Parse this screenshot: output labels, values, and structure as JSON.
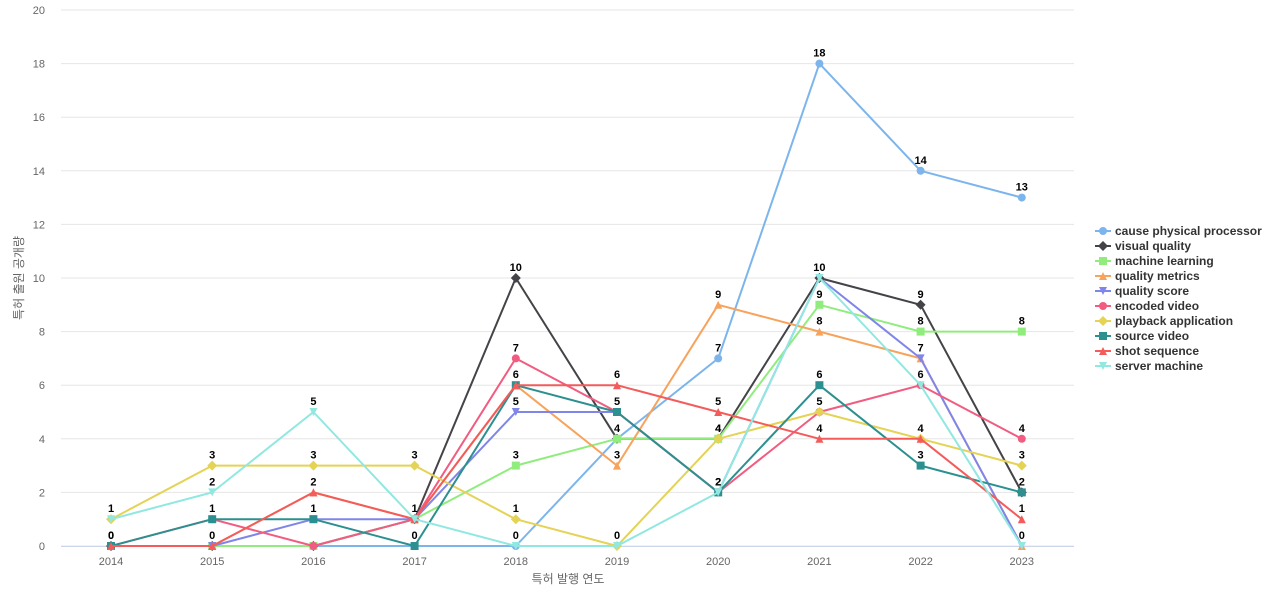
{
  "chart_data": {
    "type": "line",
    "title": "",
    "xlabel": "특허 발행 연도",
    "ylabel": "특허 출원 공개량",
    "categories": [
      "2014",
      "2015",
      "2016",
      "2017",
      "2018",
      "2019",
      "2020",
      "2021",
      "2022",
      "2023"
    ],
    "ylim": [
      0,
      20
    ],
    "yticks": [
      0,
      2,
      4,
      6,
      8,
      10,
      12,
      14,
      16,
      18,
      20
    ],
    "grid": true,
    "legend_position": "right",
    "series": [
      {
        "name": "cause physical processor",
        "color": "#7cb5ec",
        "marker": "circle",
        "values": [
          0,
          0,
          0,
          0,
          0,
          4,
          7,
          18,
          14,
          13
        ],
        "labels": [
          true,
          false,
          false,
          false,
          true,
          false,
          true,
          true,
          true,
          true
        ]
      },
      {
        "name": "visual quality",
        "color": "#434348",
        "marker": "diamond",
        "values": [
          0,
          0,
          0,
          1,
          10,
          4,
          4,
          10,
          9,
          2
        ],
        "labels": [
          false,
          false,
          false,
          false,
          true,
          false,
          false,
          true,
          true,
          false
        ]
      },
      {
        "name": "machine learning",
        "color": "#90ed7d",
        "marker": "square",
        "values": [
          0,
          0,
          0,
          1,
          3,
          4,
          4,
          9,
          8,
          8
        ],
        "labels": [
          false,
          false,
          false,
          false,
          true,
          true,
          true,
          true,
          true,
          true
        ]
      },
      {
        "name": "quality metrics",
        "color": "#f7a35c",
        "marker": "triangle",
        "values": [
          0,
          0,
          2,
          1,
          6,
          3,
          9,
          8,
          7,
          0
        ],
        "labels": [
          false,
          false,
          true,
          false,
          false,
          true,
          true,
          true,
          true,
          false
        ]
      },
      {
        "name": "quality score",
        "color": "#8085e9",
        "marker": "triangle-down",
        "values": [
          0,
          0,
          1,
          1,
          5,
          5,
          2,
          10,
          7,
          0
        ],
        "labels": [
          false,
          false,
          false,
          false,
          true,
          false,
          false,
          false,
          false,
          false
        ]
      },
      {
        "name": "encoded video",
        "color": "#f15c80",
        "marker": "circle",
        "values": [
          0,
          1,
          0,
          1,
          7,
          5,
          2,
          5,
          6,
          4
        ],
        "labels": [
          false,
          false,
          false,
          false,
          true,
          false,
          false,
          true,
          true,
          true
        ]
      },
      {
        "name": "playback application",
        "color": "#e4d354",
        "marker": "diamond",
        "values": [
          1,
          3,
          3,
          3,
          1,
          0,
          4,
          5,
          4,
          3
        ],
        "labels": [
          true,
          true,
          true,
          true,
          true,
          true,
          false,
          false,
          false,
          true
        ]
      },
      {
        "name": "source video",
        "color": "#2b908f",
        "marker": "square",
        "values": [
          0,
          1,
          1,
          0,
          6,
          5,
          2,
          6,
          3,
          2
        ],
        "labels": [
          true,
          true,
          true,
          true,
          true,
          true,
          true,
          true,
          true,
          true
        ]
      },
      {
        "name": "shot sequence",
        "color": "#f45b5b",
        "marker": "triangle",
        "values": [
          0,
          0,
          2,
          1,
          6,
          6,
          5,
          4,
          4,
          1
        ],
        "labels": [
          false,
          true,
          false,
          true,
          false,
          true,
          true,
          true,
          true,
          true
        ]
      },
      {
        "name": "server machine",
        "color": "#91e8e1",
        "marker": "triangle-down",
        "values": [
          1,
          2,
          5,
          1,
          0,
          0,
          2,
          10,
          6,
          0
        ],
        "labels": [
          false,
          true,
          true,
          false,
          false,
          false,
          true,
          false,
          false,
          false
        ]
      }
    ],
    "extra_labels": [
      {
        "category": "2020",
        "value": 4,
        "text": "4"
      },
      {
        "category": "2023",
        "value": 0,
        "text": "0"
      }
    ]
  }
}
